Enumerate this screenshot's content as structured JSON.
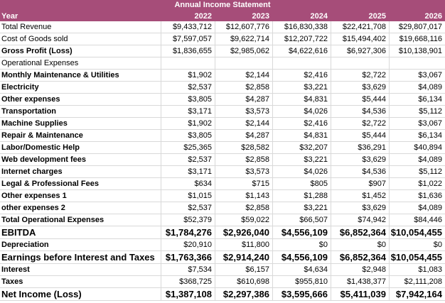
{
  "statement": {
    "title": "Annual Income Statement",
    "first_col": "Year",
    "years": [
      "2022",
      "2023",
      "2024",
      "2025",
      "2026"
    ]
  },
  "rows": [
    {
      "label": "Total Revenue",
      "style": "norm",
      "values": [
        "$9,433,712",
        "$12,607,776",
        "$16,830,338",
        "$22,421,708",
        "$29,807,017"
      ]
    },
    {
      "label": "Cost of Goods sold",
      "style": "norm",
      "values": [
        "$7,597,057",
        "$9,622,714",
        "$12,207,722",
        "$15,494,402",
        "$19,668,116"
      ]
    },
    {
      "label": "Gross Profit (Loss)",
      "style": "bold",
      "values": [
        "$1,836,655",
        "$2,985,062",
        "$4,622,616",
        "$6,927,306",
        "$10,138,901"
      ]
    },
    {
      "label": "Operational Expenses",
      "style": "section",
      "values": [
        "",
        "",
        "",
        "",
        ""
      ]
    },
    {
      "label": "Monthly Maintenance & Utilities",
      "style": "bold",
      "values": [
        "$1,902",
        "$2,144",
        "$2,416",
        "$2,722",
        "$3,067"
      ]
    },
    {
      "label": "Electricity",
      "style": "bold",
      "values": [
        "$2,537",
        "$2,858",
        "$3,221",
        "$3,629",
        "$4,089"
      ]
    },
    {
      "label": "Other expenses",
      "style": "bold",
      "values": [
        "$3,805",
        "$4,287",
        "$4,831",
        "$5,444",
        "$6,134"
      ]
    },
    {
      "label": "Transportation",
      "style": "bold",
      "values": [
        "$3,171",
        "$3,573",
        "$4,026",
        "$4,536",
        "$5,112"
      ]
    },
    {
      "label": "Machine Supplies",
      "style": "bold",
      "values": [
        "$1,902",
        "$2,144",
        "$2,416",
        "$2,722",
        "$3,067"
      ]
    },
    {
      "label": "Repair & Maintenance",
      "style": "bold",
      "values": [
        "$3,805",
        "$4,287",
        "$4,831",
        "$5,444",
        "$6,134"
      ]
    },
    {
      "label": "Labor/Domestic Help",
      "style": "bold",
      "values": [
        "$25,365",
        "$28,582",
        "$32,207",
        "$36,291",
        "$40,894"
      ]
    },
    {
      "label": "Web development fees",
      "style": "bold",
      "values": [
        "$2,537",
        "$2,858",
        "$3,221",
        "$3,629",
        "$4,089"
      ]
    },
    {
      "label": "Internet charges",
      "style": "bold",
      "values": [
        "$3,171",
        "$3,573",
        "$4,026",
        "$4,536",
        "$5,112"
      ]
    },
    {
      "label": "Legal & Professional Fees",
      "style": "bold",
      "values": [
        "$634",
        "$715",
        "$805",
        "$907",
        "$1,022"
      ]
    },
    {
      "label": "Other expenses 1",
      "style": "bold",
      "values": [
        "$1,015",
        "$1,143",
        "$1,288",
        "$1,452",
        "$1,636"
      ]
    },
    {
      "label": "other expenses 2",
      "style": "bold",
      "values": [
        "$2,537",
        "$2,858",
        "$3,221",
        "$3,629",
        "$4,089"
      ]
    },
    {
      "label": "Total Operational Expenses",
      "style": "bold",
      "values": [
        "$52,379",
        "$59,022",
        "$66,507",
        "$74,942",
        "$84,446"
      ]
    },
    {
      "label": "EBITDA",
      "style": "big",
      "values": [
        "$1,784,276",
        "$2,926,040",
        "$4,556,109",
        "$6,852,364",
        "$10,054,455"
      ]
    },
    {
      "label": "Depreciation",
      "style": "bold",
      "values": [
        "$20,910",
        "$11,800",
        "$0",
        "$0",
        "$0"
      ]
    },
    {
      "label": "Earnings before Interest and Taxes",
      "style": "big",
      "values": [
        "$1,763,366",
        "$2,914,240",
        "$4,556,109",
        "$6,852,364",
        "$10,054,455"
      ]
    },
    {
      "label": "Interest",
      "style": "bold",
      "values": [
        "$7,534",
        "$6,157",
        "$4,634",
        "$2,948",
        "$1,083"
      ]
    },
    {
      "label": "Taxes",
      "style": "bold",
      "values": [
        "$368,725",
        "$610,698",
        "$955,810",
        "$1,438,377",
        "$2,111,208"
      ]
    },
    {
      "label": "Net Income (Loss)",
      "style": "big",
      "values": [
        "$1,387,108",
        "$2,297,386",
        "$3,595,666",
        "$5,411,039",
        "$7,942,164"
      ]
    }
  ]
}
